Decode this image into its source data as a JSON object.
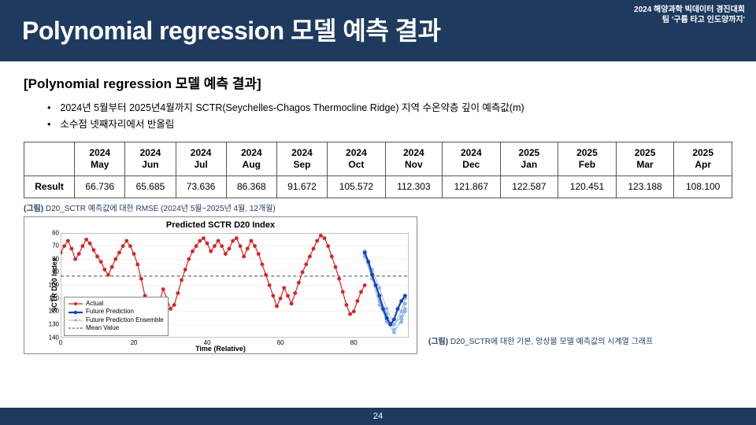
{
  "header": {
    "event": "2024 해양과학 빅데이터 경진대회",
    "team": "팀 '구름 타고 인도양까지'",
    "title": "Polynomial regression 모델 예측 결과"
  },
  "section_title": "[Polynomial regression 모델 예측 결과]",
  "bullets": [
    "2024년 5월부터 2025년4월까지 SCTR(Seychelles-Chagos Thermocline Ridge) 지역 수온약층 깊이 예측값(m)",
    "소수점 넷째자리에서 반올림"
  ],
  "table": {
    "columns": [
      "2024\nMay",
      "2024\nJun",
      "2024\nJul",
      "2024\nAug",
      "2024\nSep",
      "2024\nOct",
      "2024\nNov",
      "2024\nDec",
      "2025\nJan",
      "2025\nFeb",
      "2025\nMar",
      "2025\nApr"
    ],
    "row_label": "Result",
    "row": [
      "66.736",
      "65.685",
      "73.636",
      "86.368",
      "91.672",
      "105.572",
      "112.303",
      "121.867",
      "122.587",
      "120.451",
      "123.188",
      "108.100"
    ]
  },
  "caption_top": {
    "bold": "(그림)",
    "rest": " D20_SCTR 예측값에 대한 RMSE (2024년 5월~2025년 4월, 12개월)"
  },
  "chart": {
    "type": "line",
    "title": "Predicted SCTR D20 Index",
    "ylabel": "SCTR D20 Index",
    "xlabel": "Time (Relative)",
    "xlim": [
      0,
      95
    ],
    "ylim": [
      140,
      60
    ],
    "y_ticks": [
      60,
      70,
      80,
      90,
      100,
      110,
      120,
      130,
      140
    ],
    "x_ticks": [
      0,
      20,
      40,
      60,
      80
    ],
    "mean_value": 93,
    "colors": {
      "actual": "#d62424",
      "future": "#1540c4",
      "ensemble": "#8fb8e8",
      "mean": "#444444",
      "grid": "#e6e6e6",
      "border": "#888888",
      "bg": "#ffffff"
    },
    "marker_size": 2.4,
    "line_width_actual": 1.2,
    "line_width_future": 2.2,
    "line_width_ensemble": 1.0,
    "actual": [
      [
        0,
        75
      ],
      [
        1,
        70
      ],
      [
        2,
        66
      ],
      [
        3,
        72
      ],
      [
        4,
        80
      ],
      [
        5,
        76
      ],
      [
        6,
        70
      ],
      [
        7,
        65
      ],
      [
        8,
        68
      ],
      [
        9,
        73
      ],
      [
        10,
        78
      ],
      [
        11,
        82
      ],
      [
        12,
        88
      ],
      [
        13,
        92
      ],
      [
        14,
        86
      ],
      [
        15,
        80
      ],
      [
        16,
        75
      ],
      [
        17,
        70
      ],
      [
        18,
        66
      ],
      [
        19,
        70
      ],
      [
        20,
        76
      ],
      [
        21,
        84
      ],
      [
        22,
        95
      ],
      [
        23,
        108
      ],
      [
        24,
        118
      ],
      [
        25,
        125
      ],
      [
        26,
        120
      ],
      [
        27,
        112
      ],
      [
        28,
        103
      ],
      [
        29,
        110
      ],
      [
        30,
        118
      ],
      [
        31,
        115
      ],
      [
        32,
        106
      ],
      [
        33,
        96
      ],
      [
        34,
        88
      ],
      [
        35,
        80
      ],
      [
        36,
        74
      ],
      [
        37,
        70
      ],
      [
        38,
        66
      ],
      [
        39,
        64
      ],
      [
        40,
        68
      ],
      [
        41,
        74
      ],
      [
        42,
        70
      ],
      [
        43,
        66
      ],
      [
        44,
        70
      ],
      [
        45,
        76
      ],
      [
        46,
        72
      ],
      [
        47,
        66
      ],
      [
        48,
        64
      ],
      [
        49,
        70
      ],
      [
        50,
        78
      ],
      [
        51,
        72
      ],
      [
        52,
        66
      ],
      [
        53,
        70
      ],
      [
        54,
        76
      ],
      [
        55,
        84
      ],
      [
        56,
        92
      ],
      [
        57,
        100
      ],
      [
        58,
        108
      ],
      [
        59,
        116
      ],
      [
        60,
        110
      ],
      [
        61,
        102
      ],
      [
        62,
        108
      ],
      [
        63,
        114
      ],
      [
        64,
        106
      ],
      [
        65,
        98
      ],
      [
        66,
        90
      ],
      [
        67,
        84
      ],
      [
        68,
        78
      ],
      [
        69,
        72
      ],
      [
        70,
        66
      ],
      [
        71,
        62
      ],
      [
        72,
        64
      ],
      [
        73,
        70
      ],
      [
        74,
        78
      ],
      [
        75,
        86
      ],
      [
        76,
        95
      ],
      [
        77,
        105
      ],
      [
        78,
        115
      ],
      [
        79,
        122
      ],
      [
        80,
        120
      ],
      [
        81,
        112
      ],
      [
        82,
        105
      ],
      [
        83,
        100
      ]
    ],
    "future": [
      [
        83,
        75
      ],
      [
        84,
        82
      ],
      [
        85,
        92
      ],
      [
        86,
        100
      ],
      [
        87,
        108
      ],
      [
        88,
        118
      ],
      [
        89,
        125
      ],
      [
        90,
        130
      ],
      [
        91,
        126
      ],
      [
        92,
        118
      ],
      [
        93,
        112
      ],
      [
        94,
        108
      ]
    ],
    "ensembles": [
      [
        [
          83,
          75
        ],
        [
          85,
          88
        ],
        [
          87,
          102
        ],
        [
          89,
          118
        ],
        [
          91,
          130
        ],
        [
          93,
          124
        ],
        [
          94,
          118
        ]
      ],
      [
        [
          83,
          76
        ],
        [
          85,
          92
        ],
        [
          87,
          108
        ],
        [
          89,
          122
        ],
        [
          91,
          134
        ],
        [
          93,
          128
        ],
        [
          94,
          120
        ]
      ],
      [
        [
          83,
          74
        ],
        [
          85,
          90
        ],
        [
          87,
          112
        ],
        [
          89,
          128
        ],
        [
          91,
          136
        ],
        [
          93,
          126
        ],
        [
          94,
          114
        ]
      ],
      [
        [
          83,
          78
        ],
        [
          85,
          95
        ],
        [
          87,
          115
        ],
        [
          89,
          126
        ],
        [
          91,
          130
        ],
        [
          93,
          120
        ],
        [
          94,
          110
        ]
      ]
    ],
    "legend": {
      "actual": "Actual",
      "future": "Future Prediction",
      "ensemble": "Future Prediction Ensemble",
      "mean": "Mean Value"
    }
  },
  "caption_side": {
    "bold": "(그림)",
    "rest": " D20_SCTR에 대한 기본, 앙상블 모델 예측값의 시계열 그래프"
  },
  "page_number": "24"
}
